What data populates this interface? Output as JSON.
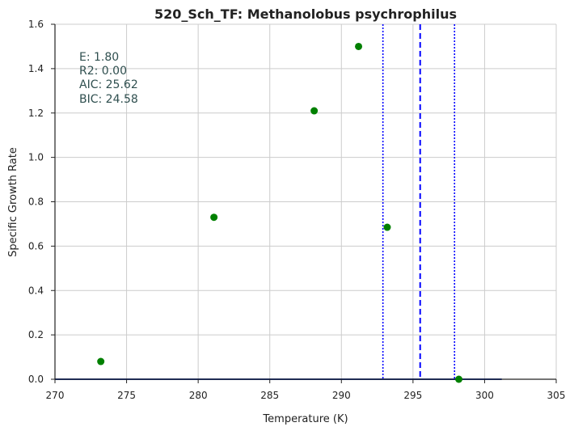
{
  "chart_data": {
    "type": "scatter",
    "title": "520_Sch_TF: Methanolobus psychrophilus",
    "xlabel": "Temperature (K)",
    "ylabel": "Specific Growth Rate",
    "xlim": [
      270,
      305
    ],
    "ylim": [
      0.0,
      1.6
    ],
    "xticks": [
      "270",
      "275",
      "280",
      "285",
      "290",
      "295",
      "300",
      "305"
    ],
    "yticks": [
      "0.0",
      "0.2",
      "0.4",
      "0.6",
      "0.8",
      "1.0",
      "1.2",
      "1.4",
      "1.6"
    ],
    "grid": true,
    "points": {
      "x": [
        273.2,
        281.1,
        288.1,
        291.2,
        293.2,
        298.2
      ],
      "y": [
        0.08,
        0.73,
        1.21,
        1.5,
        0.685,
        0.0
      ],
      "color": "#008000"
    },
    "model_line": {
      "x": [
        270,
        301.2
      ],
      "y": [
        0.0,
        0.0
      ],
      "color": "#1f3fa8"
    },
    "vertical_lines": [
      {
        "x": 292.9,
        "style": "dotted",
        "color": "#0000ff"
      },
      {
        "x": 295.5,
        "style": "dashed",
        "color": "#0000ff"
      },
      {
        "x": 297.9,
        "style": "dotted",
        "color": "#0000ff"
      }
    ],
    "stats": [
      "E:  1.80",
      "R2:  0.00",
      "AIC: 25.62",
      "BIC: 24.58"
    ]
  }
}
